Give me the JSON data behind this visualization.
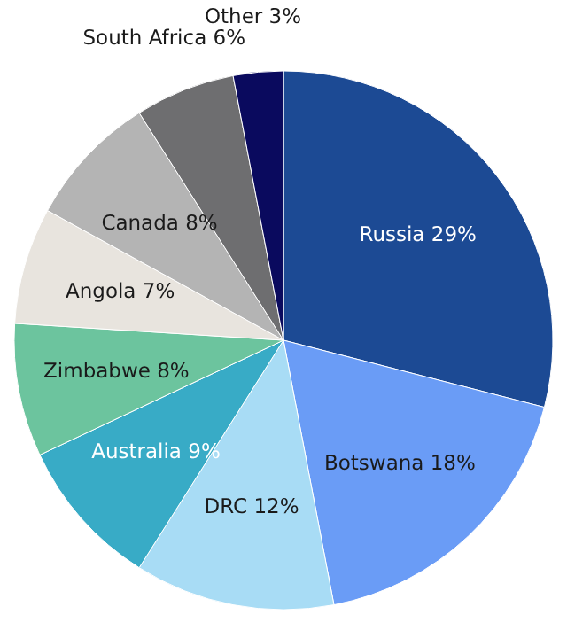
{
  "chart_data": {
    "type": "pie",
    "categories": [
      "Russia",
      "Botswana",
      "DRC",
      "Australia",
      "Zimbabwe",
      "Angola",
      "Canada",
      "South Africa",
      "Other"
    ],
    "values": [
      29,
      18,
      12,
      9,
      8,
      7,
      8,
      6,
      3
    ],
    "value_labels": [
      "29%",
      "18%",
      "12%",
      "9%",
      "8%",
      "7%",
      "8%",
      "6%",
      "3%"
    ],
    "colors": [
      "#1c4a94",
      "#6a9cf6",
      "#a8dcf5",
      "#38abc6",
      "#6cc49e",
      "#e8e4de",
      "#b4b4b4",
      "#6e6e70",
      "#0a0a5e"
    ],
    "legend": false
  }
}
